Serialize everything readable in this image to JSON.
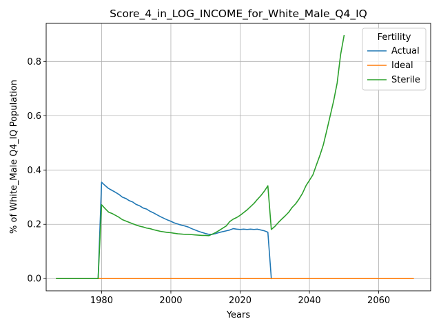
{
  "chart_data": {
    "type": "line",
    "title": "Score_4_in_LOG_INCOME_for_White_Male_Q4_IQ",
    "xlabel": "Years",
    "ylabel": "% of White_Male Q4_IQ Population",
    "xlim": [
      1964,
      2075
    ],
    "ylim": [
      -0.045,
      0.94
    ],
    "xticks": [
      1980,
      2000,
      2020,
      2040,
      2060
    ],
    "yticks": [
      0.0,
      0.2,
      0.4,
      0.6,
      0.8
    ],
    "ytick_labels": [
      "0.0",
      "0.2",
      "0.4",
      "0.6",
      "0.8"
    ],
    "grid": true,
    "legend": {
      "title": "Fertility",
      "position": "top-right"
    },
    "series": [
      {
        "name": "Actual",
        "color": "#1f77b4",
        "points": [
          [
            1967,
            0.0
          ],
          [
            1979,
            0.0
          ],
          [
            1980,
            0.355
          ],
          [
            1981,
            0.343
          ],
          [
            1982,
            0.332
          ],
          [
            1983,
            0.325
          ],
          [
            1984,
            0.318
          ],
          [
            1985,
            0.31
          ],
          [
            1986,
            0.3
          ],
          [
            1987,
            0.295
          ],
          [
            1988,
            0.287
          ],
          [
            1989,
            0.282
          ],
          [
            1990,
            0.273
          ],
          [
            1991,
            0.268
          ],
          [
            1992,
            0.26
          ],
          [
            1993,
            0.256
          ],
          [
            1994,
            0.248
          ],
          [
            1995,
            0.242
          ],
          [
            1996,
            0.235
          ],
          [
            1997,
            0.228
          ],
          [
            1998,
            0.222
          ],
          [
            1999,
            0.216
          ],
          [
            2000,
            0.211
          ],
          [
            2001,
            0.205
          ],
          [
            2002,
            0.201
          ],
          [
            2003,
            0.197
          ],
          [
            2004,
            0.194
          ],
          [
            2005,
            0.19
          ],
          [
            2006,
            0.184
          ],
          [
            2007,
            0.179
          ],
          [
            2008,
            0.174
          ],
          [
            2009,
            0.17
          ],
          [
            2010,
            0.166
          ],
          [
            2011,
            0.163
          ],
          [
            2012,
            0.163
          ],
          [
            2013,
            0.166
          ],
          [
            2014,
            0.17
          ],
          [
            2015,
            0.173
          ],
          [
            2016,
            0.176
          ],
          [
            2017,
            0.179
          ],
          [
            2018,
            0.184
          ],
          [
            2019,
            0.182
          ],
          [
            2020,
            0.181
          ],
          [
            2021,
            0.182
          ],
          [
            2022,
            0.181
          ],
          [
            2023,
            0.182
          ],
          [
            2024,
            0.181
          ],
          [
            2025,
            0.182
          ],
          [
            2026,
            0.179
          ],
          [
            2027,
            0.176
          ],
          [
            2028,
            0.171
          ],
          [
            2029,
            0.0
          ]
        ]
      },
      {
        "name": "Ideal",
        "color": "#ff7f0e",
        "points": [
          [
            1967,
            0.0
          ],
          [
            2070,
            0.0
          ]
        ]
      },
      {
        "name": "Sterile",
        "color": "#2ca02c",
        "points": [
          [
            1967,
            0.0
          ],
          [
            1979,
            0.0
          ],
          [
            1980,
            0.272
          ],
          [
            1981,
            0.258
          ],
          [
            1982,
            0.245
          ],
          [
            1983,
            0.24
          ],
          [
            1984,
            0.233
          ],
          [
            1985,
            0.226
          ],
          [
            1986,
            0.217
          ],
          [
            1987,
            0.212
          ],
          [
            1988,
            0.207
          ],
          [
            1989,
            0.202
          ],
          [
            1990,
            0.197
          ],
          [
            1991,
            0.193
          ],
          [
            1992,
            0.19
          ],
          [
            1993,
            0.186
          ],
          [
            1994,
            0.184
          ],
          [
            1995,
            0.18
          ],
          [
            1996,
            0.177
          ],
          [
            1997,
            0.174
          ],
          [
            1998,
            0.172
          ],
          [
            1999,
            0.17
          ],
          [
            2000,
            0.169
          ],
          [
            2001,
            0.167
          ],
          [
            2002,
            0.165
          ],
          [
            2003,
            0.164
          ],
          [
            2004,
            0.163
          ],
          [
            2005,
            0.163
          ],
          [
            2006,
            0.162
          ],
          [
            2007,
            0.161
          ],
          [
            2008,
            0.16
          ],
          [
            2009,
            0.159
          ],
          [
            2010,
            0.159
          ],
          [
            2011,
            0.158
          ],
          [
            2012,
            0.164
          ],
          [
            2013,
            0.17
          ],
          [
            2014,
            0.178
          ],
          [
            2015,
            0.186
          ],
          [
            2016,
            0.194
          ],
          [
            2017,
            0.21
          ],
          [
            2018,
            0.219
          ],
          [
            2019,
            0.225
          ],
          [
            2020,
            0.233
          ],
          [
            2021,
            0.243
          ],
          [
            2022,
            0.253
          ],
          [
            2023,
            0.265
          ],
          [
            2024,
            0.277
          ],
          [
            2025,
            0.292
          ],
          [
            2026,
            0.306
          ],
          [
            2027,
            0.322
          ],
          [
            2028,
            0.342
          ],
          [
            2029,
            0.181
          ],
          [
            2030,
            0.192
          ],
          [
            2031,
            0.206
          ],
          [
            2032,
            0.219
          ],
          [
            2033,
            0.231
          ],
          [
            2034,
            0.244
          ],
          [
            2035,
            0.262
          ],
          [
            2036,
            0.275
          ],
          [
            2037,
            0.293
          ],
          [
            2038,
            0.314
          ],
          [
            2039,
            0.342
          ],
          [
            2040,
            0.362
          ],
          [
            2041,
            0.382
          ],
          [
            2042,
            0.418
          ],
          [
            2043,
            0.453
          ],
          [
            2044,
            0.492
          ],
          [
            2045,
            0.545
          ],
          [
            2046,
            0.6
          ],
          [
            2047,
            0.655
          ],
          [
            2048,
            0.72
          ],
          [
            2049,
            0.825
          ],
          [
            2050,
            0.895
          ]
        ]
      }
    ]
  }
}
